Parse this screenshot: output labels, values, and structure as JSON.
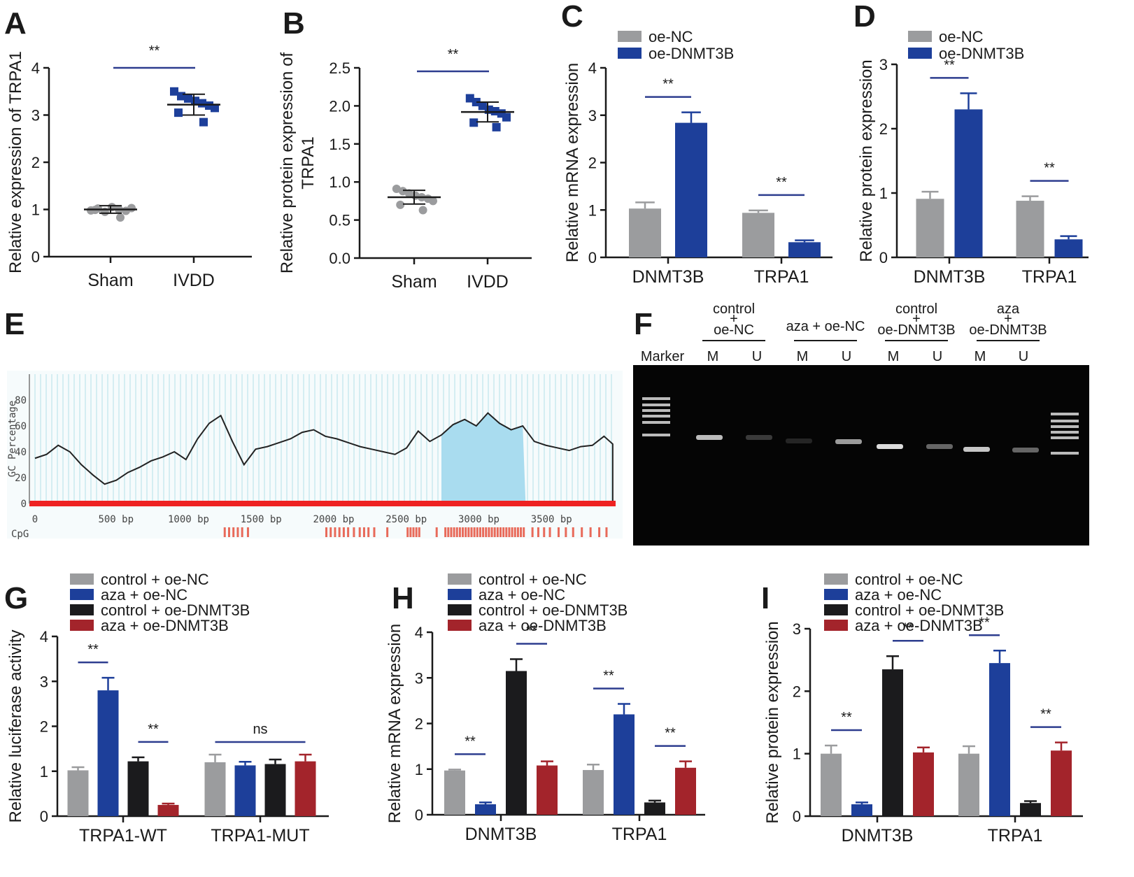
{
  "colors": {
    "gray": "#9b9c9e",
    "blue": "#1d3f9a",
    "black": "#1b1b1d",
    "red": "#a3242b",
    "sig_line": "#2d3d8f",
    "gc_fill": "#a9dcef",
    "gc_grid": "#bfe4ec",
    "baseline_red": "#ee2222",
    "gel_bg": "#050505",
    "band": "#dcdcdc"
  },
  "panels": {
    "A": {
      "label": "A"
    },
    "B": {
      "label": "B"
    },
    "C": {
      "label": "C"
    },
    "D": {
      "label": "D"
    },
    "E": {
      "label": "E"
    },
    "F": {
      "label": "F"
    },
    "G": {
      "label": "G"
    },
    "H": {
      "label": "H"
    },
    "I": {
      "label": "I"
    }
  },
  "chart_data": [
    {
      "id": "A",
      "type": "scatter",
      "ylabel": "Relative expression of TRPA1",
      "ylim": [
        0,
        4
      ],
      "yticks": [
        "0",
        "1",
        "2",
        "3",
        "4"
      ],
      "categories": [
        "Sham",
        "IVDD"
      ],
      "series": [
        {
          "category": "Sham",
          "marker": "circle",
          "color": "gray",
          "mean": 1.0,
          "sd": 0.08,
          "points": [
            0.98,
            1.02,
            0.95,
            1.05,
            1.0,
            0.97,
            1.03,
            0.99,
            0.83
          ]
        },
        {
          "category": "IVDD",
          "marker": "square",
          "color": "blue",
          "mean": 3.22,
          "sd": 0.22,
          "points": [
            3.5,
            3.4,
            3.35,
            3.3,
            3.25,
            3.2,
            3.15,
            3.05,
            2.85
          ]
        }
      ],
      "significance": [
        {
          "from": 0,
          "to": 1,
          "label": "**"
        }
      ]
    },
    {
      "id": "B",
      "type": "scatter",
      "ylabel": "Relative protein expression of TRPA1",
      "ylabel_lines": [
        "Relative protein expression of",
        "TRPA1"
      ],
      "ylim": [
        0,
        2.5
      ],
      "yticks": [
        "0.0",
        "0.5",
        "1.0",
        "1.5",
        "2.0",
        "2.5"
      ],
      "categories": [
        "Sham",
        "IVDD"
      ],
      "series": [
        {
          "category": "Sham",
          "marker": "circle",
          "color": "gray",
          "mean": 0.8,
          "sd": 0.09,
          "points": [
            0.91,
            0.88,
            0.85,
            0.82,
            0.8,
            0.78,
            0.75,
            0.7,
            0.63
          ]
        },
        {
          "category": "IVDD",
          "marker": "square",
          "color": "blue",
          "mean": 1.92,
          "sd": 0.13,
          "points": [
            2.1,
            2.05,
            2.0,
            1.95,
            1.93,
            1.9,
            1.85,
            1.78,
            1.72
          ]
        }
      ],
      "significance": [
        {
          "from": 0,
          "to": 1,
          "label": "**"
        }
      ]
    },
    {
      "id": "C",
      "type": "bar",
      "ylabel": "Relative mRNA expression",
      "ylim": [
        0,
        4
      ],
      "yticks": [
        "0",
        "1",
        "2",
        "3",
        "4"
      ],
      "categories": [
        "DNMT3B",
        "TRPA1"
      ],
      "legend": [
        "oe-NC",
        "oe-DNMT3B"
      ],
      "series": [
        {
          "name": "oe-NC",
          "color": "gray",
          "values": [
            1.03,
            0.94
          ],
          "errors": [
            0.13,
            0.05
          ]
        },
        {
          "name": "oe-DNMT3B",
          "color": "blue",
          "values": [
            2.84,
            0.32
          ],
          "errors": [
            0.22,
            0.04
          ]
        }
      ],
      "significance": [
        {
          "group": 0,
          "from": 0,
          "to": 1,
          "label": "**"
        },
        {
          "group": 1,
          "from": 0,
          "to": 1,
          "label": "**"
        }
      ]
    },
    {
      "id": "D",
      "type": "bar",
      "ylabel": "Relative protein expression",
      "ylim": [
        0,
        3
      ],
      "yticks": [
        "0",
        "1",
        "2",
        "3"
      ],
      "categories": [
        "DNMT3B",
        "TRPA1"
      ],
      "legend": [
        "oe-NC",
        "oe-DNMT3B"
      ],
      "series": [
        {
          "name": "oe-NC",
          "color": "gray",
          "values": [
            0.91,
            0.88
          ],
          "errors": [
            0.11,
            0.07
          ]
        },
        {
          "name": "oe-DNMT3B",
          "color": "blue",
          "values": [
            2.3,
            0.28
          ],
          "errors": [
            0.25,
            0.05
          ]
        }
      ],
      "significance": [
        {
          "group": 0,
          "from": 0,
          "to": 1,
          "label": "**"
        },
        {
          "group": 1,
          "from": 0,
          "to": 1,
          "label": "**"
        }
      ]
    },
    {
      "id": "E",
      "type": "line",
      "ylabel": "GC Percentage",
      "yticks": [
        "0",
        "20",
        "40",
        "60",
        "80"
      ],
      "xticks": [
        "0",
        "500 bp",
        "1000 bp",
        "1500 bp",
        "2000 bp",
        "2500 bp",
        "3000 bp",
        "3500 bp"
      ],
      "xlim": [
        0,
        4000
      ],
      "ylim": [
        0,
        100
      ],
      "island": [
        2800,
        3380
      ],
      "track_label": "CpG",
      "x": [
        0,
        80,
        160,
        240,
        320,
        400,
        480,
        560,
        640,
        720,
        800,
        880,
        960,
        1040,
        1120,
        1200,
        1280,
        1360,
        1440,
        1520,
        1600,
        1680,
        1760,
        1840,
        1920,
        2000,
        2080,
        2160,
        2240,
        2320,
        2400,
        2480,
        2560,
        2640,
        2720,
        2800,
        2880,
        2960,
        3040,
        3120,
        3200,
        3280,
        3360,
        3440,
        3520,
        3600,
        3680,
        3760,
        3840,
        3920,
        3980
      ],
      "y": [
        35,
        38,
        45,
        40,
        30,
        22,
        15,
        18,
        24,
        28,
        33,
        36,
        40,
        34,
        50,
        62,
        68,
        48,
        30,
        42,
        44,
        47,
        50,
        55,
        57,
        52,
        50,
        47,
        44,
        42,
        40,
        38,
        43,
        56,
        48,
        53,
        61,
        65,
        60,
        70,
        62,
        57,
        60,
        48,
        45,
        43,
        41,
        44,
        45,
        52,
        46
      ],
      "cpg_sites": [
        1300,
        1330,
        1360,
        1390,
        1420,
        1460,
        2000,
        2030,
        2060,
        2090,
        2120,
        2150,
        2190,
        2230,
        2260,
        2290,
        2330,
        2420,
        2560,
        2580,
        2600,
        2620,
        2640,
        2760,
        2820,
        2840,
        2860,
        2880,
        2900,
        2920,
        2940,
        2960,
        2980,
        3000,
        3020,
        3040,
        3060,
        3080,
        3100,
        3120,
        3140,
        3160,
        3180,
        3200,
        3220,
        3240,
        3260,
        3280,
        3300,
        3320,
        3340,
        3360,
        3420,
        3460,
        3500,
        3540,
        3600,
        3650,
        3700,
        3760,
        3820,
        3880,
        3930
      ]
    },
    {
      "id": "F",
      "type": "other",
      "marker_label": "Marker",
      "groups": [
        {
          "lines": [
            "control",
            "+",
            "oe-NC"
          ],
          "lanes": [
            "M",
            "U"
          ]
        },
        {
          "lines": [
            "aza + oe-NC"
          ],
          "lanes": [
            "M",
            "U"
          ]
        },
        {
          "lines": [
            "control",
            "+",
            "oe-DNMT3B"
          ],
          "lanes": [
            "M",
            "U"
          ]
        },
        {
          "lines": [
            "aza",
            "+",
            "oe-DNMT3B"
          ],
          "lanes": [
            "M",
            "U"
          ]
        }
      ],
      "band_intensity": [
        0.85,
        0.25,
        0.15,
        0.7,
        1.0,
        0.45,
        0.9,
        0.45
      ]
    },
    {
      "id": "G",
      "type": "bar",
      "ylabel": "Relative luciferase activity",
      "ylim": [
        0,
        4
      ],
      "yticks": [
        "0",
        "1",
        "2",
        "3",
        "4"
      ],
      "categories": [
        "TRPA1-WT",
        "TRPA1-MUT"
      ],
      "legend": [
        "control + oe-NC",
        "aza + oe-NC",
        "control + oe-DNMT3B",
        "aza + oe-DNMT3B"
      ],
      "series": [
        {
          "name": "control + oe-NC",
          "color": "gray",
          "values": [
            1.02,
            1.2
          ],
          "errors": [
            0.07,
            0.17
          ]
        },
        {
          "name": "aza + oe-NC",
          "color": "blue",
          "values": [
            2.8,
            1.13
          ],
          "errors": [
            0.28,
            0.08
          ]
        },
        {
          "name": "control + oe-DNMT3B",
          "color": "black",
          "values": [
            1.22,
            1.16
          ],
          "errors": [
            0.09,
            0.1
          ]
        },
        {
          "name": "aza + oe-DNMT3B",
          "color": "red",
          "values": [
            0.25,
            1.22
          ],
          "errors": [
            0.03,
            0.15
          ]
        }
      ],
      "significance": [
        {
          "group": 0,
          "from": 0,
          "to": 1,
          "label": "**"
        },
        {
          "group": 0,
          "from": 2,
          "to": 3,
          "label": "**"
        },
        {
          "group": 1,
          "from": 0,
          "to": 3,
          "label": "ns"
        }
      ]
    },
    {
      "id": "H",
      "type": "bar",
      "ylabel": "Relative mRNA expression",
      "ylim": [
        0,
        4
      ],
      "yticks": [
        "0",
        "1",
        "2",
        "3",
        "4"
      ],
      "categories": [
        "DNMT3B",
        "TRPA1"
      ],
      "legend": [
        "control + oe-NC",
        "aza + oe-NC",
        "control + oe-DNMT3B",
        "aza + oe-DNMT3B"
      ],
      "series": [
        {
          "name": "control + oe-NC",
          "color": "gray",
          "values": [
            0.97,
            0.98
          ],
          "errors": [
            0.02,
            0.12
          ]
        },
        {
          "name": "aza + oe-NC",
          "color": "blue",
          "values": [
            0.23,
            2.2
          ],
          "errors": [
            0.04,
            0.23
          ]
        },
        {
          "name": "control + oe-DNMT3B",
          "color": "black",
          "values": [
            3.15,
            0.27
          ],
          "errors": [
            0.26,
            0.04
          ]
        },
        {
          "name": "aza + oe-DNMT3B",
          "color": "red",
          "values": [
            1.08,
            1.03
          ],
          "errors": [
            0.09,
            0.14
          ]
        }
      ],
      "significance": [
        {
          "group": 0,
          "from": 0,
          "to": 1,
          "label": "**"
        },
        {
          "group": 0,
          "from": 2,
          "to": 3,
          "label": "**"
        },
        {
          "group": 1,
          "from": 0,
          "to": 1,
          "label": "**"
        },
        {
          "group": 1,
          "from": 2,
          "to": 3,
          "label": "**"
        }
      ]
    },
    {
      "id": "I",
      "type": "bar",
      "ylabel": "Relative protein expression",
      "ylim": [
        0,
        3
      ],
      "yticks": [
        "0",
        "1",
        "2",
        "3"
      ],
      "categories": [
        "DNMT3B",
        "TRPA1"
      ],
      "legend": [
        "control + oe-NC",
        "aza + oe-NC",
        "control + oe-DNMT3B",
        "aza + oe-DNMT3B"
      ],
      "series": [
        {
          "name": "control + oe-NC",
          "color": "gray",
          "values": [
            1.0,
            1.0
          ],
          "errors": [
            0.13,
            0.12
          ]
        },
        {
          "name": "aza + oe-NC",
          "color": "blue",
          "values": [
            0.19,
            2.45
          ],
          "errors": [
            0.03,
            0.2
          ]
        },
        {
          "name": "control + oe-DNMT3B",
          "color": "black",
          "values": [
            2.35,
            0.21
          ],
          "errors": [
            0.21,
            0.03
          ]
        },
        {
          "name": "aza + oe-DNMT3B",
          "color": "red",
          "values": [
            1.02,
            1.05
          ],
          "errors": [
            0.08,
            0.13
          ]
        }
      ],
      "significance": [
        {
          "group": 0,
          "from": 0,
          "to": 1,
          "label": "**"
        },
        {
          "group": 0,
          "from": 2,
          "to": 3,
          "label": "**"
        },
        {
          "group": 1,
          "from": 0,
          "to": 1,
          "label": "**"
        },
        {
          "group": 1,
          "from": 2,
          "to": 3,
          "label": "**"
        }
      ]
    }
  ]
}
